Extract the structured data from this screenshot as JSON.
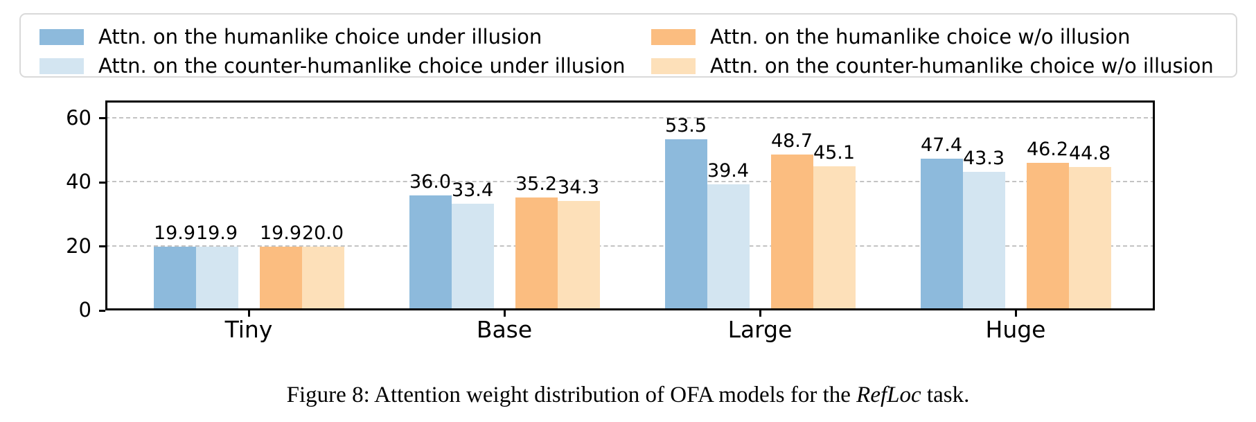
{
  "figure": {
    "caption": {
      "text1": "Figure 8: Attention weight distribution of OFA models for the ",
      "italic": "RefLoc",
      "text2": " task."
    }
  },
  "colors": {
    "humanlike_illusion": "#8DBADC",
    "counter_humanlike_illusion": "#D3E5F1",
    "humanlike_no_illusion": "#FBBD80",
    "counter_humanlike_no_illusion": "#FDE0B9",
    "gridline": "#c3c3c3",
    "axis": "#000000",
    "legend_border": "#d9d9d9"
  },
  "chart_data": {
    "type": "bar",
    "title": "",
    "xlabel": "",
    "ylabel": "",
    "categories": [
      "Tiny",
      "Base",
      "Large",
      "Huge"
    ],
    "series": [
      {
        "name": "Attn. on the humanlike choice under illusion",
        "color": "#8DBADC",
        "values": [
          19.9,
          36.0,
          53.5,
          47.4
        ]
      },
      {
        "name": "Attn. on the counter-humanlike choice under illusion",
        "color": "#D3E5F1",
        "values": [
          19.9,
          33.4,
          39.4,
          43.3
        ]
      },
      {
        "name": "Attn. on the humanlike choice w/o illusion",
        "color": "#FBBD80",
        "values": [
          19.9,
          35.2,
          48.7,
          46.2
        ]
      },
      {
        "name": "Attn. on the counter-humanlike choice w/o illusion",
        "color": "#FDE0B9",
        "values": [
          20.0,
          34.3,
          45.1,
          44.8
        ]
      }
    ],
    "value_labels_decimals": 1,
    "yticks": [
      0,
      20,
      40,
      60
    ],
    "ylim": [
      0,
      65.6
    ],
    "grid": "horizontal dashed at yticks",
    "legend_position": "top box, 2 columns: series 1-2 left column, series 3-4 right column"
  }
}
